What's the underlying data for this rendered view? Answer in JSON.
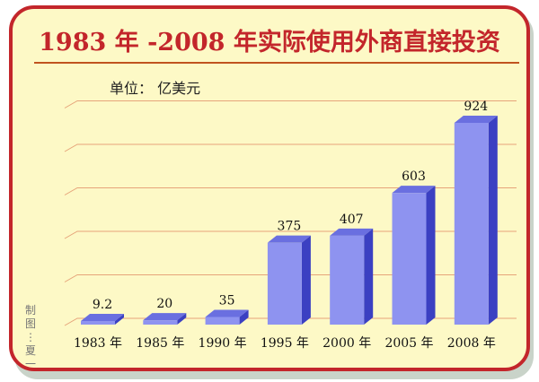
{
  "chart_data": {
    "type": "bar",
    "title": "1983 年 -2008 年实际使用外商直接投资",
    "unit_label": "单位： 亿美元",
    "credit": "制图：夏一",
    "categories": [
      "1983 年",
      "1985 年",
      "1990 年",
      "1995 年",
      "2000 年",
      "2005 年",
      "2008 年"
    ],
    "values": [
      9.2,
      20,
      35,
      375,
      407,
      603,
      924
    ],
    "value_labels": [
      "9.2",
      "20",
      "35",
      "375",
      "407",
      "603",
      "924"
    ],
    "ylim": [
      0,
      924
    ],
    "grid": true,
    "style": "3d-bar",
    "colors": {
      "frame_border": "#c3262b",
      "background": "#fdf9c6",
      "title": "#c3262b",
      "bar_front": "#8e93f0",
      "bar_side": "#3b40c2",
      "bar_top": "#6a6fe0",
      "grid": "#e6a47a"
    }
  }
}
